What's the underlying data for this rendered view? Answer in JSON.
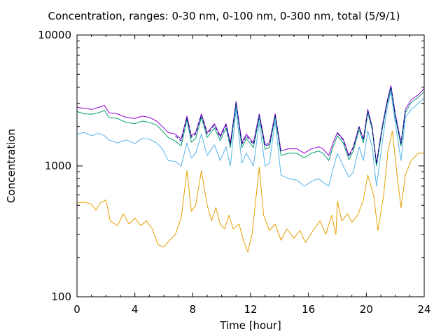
{
  "chart_data": {
    "type": "line",
    "title": "Concentration, ranges: 0-30 nm, 0-100 nm, 0-300 nm, total (5/9/1)",
    "xlabel": "Time [hour]",
    "ylabel": "Concentration",
    "xlim": [
      0,
      24
    ],
    "ylim": [
      100,
      10000
    ],
    "yscale": "log",
    "xticks": [
      0,
      4,
      8,
      12,
      16,
      20,
      24
    ],
    "yticks": [
      100,
      1000,
      10000
    ],
    "ytick_labels": [
      "100",
      "1000",
      "10000"
    ],
    "grid": false,
    "series": [
      {
        "color": "#9400d3",
        "dash": false,
        "points": [
          [
            0,
            2800
          ],
          [
            0.5,
            2750
          ],
          [
            1,
            2700
          ],
          [
            1.5,
            2800
          ],
          [
            1.9,
            2900
          ],
          [
            2.2,
            2550
          ],
          [
            2.8,
            2500
          ],
          [
            3.4,
            2350
          ],
          [
            4,
            2300
          ],
          [
            4.5,
            2400
          ],
          [
            5,
            2350
          ],
          [
            5.5,
            2200
          ],
          [
            5.9,
            2000
          ],
          [
            6.3,
            1800
          ],
          [
            6.8,
            1750
          ],
          [
            7.2,
            1600
          ],
          [
            7.6,
            2400
          ],
          [
            7.9,
            1700
          ],
          [
            8.2,
            1800
          ],
          [
            8.6,
            2500
          ],
          [
            9,
            1800
          ],
          [
            9.5,
            2100
          ],
          [
            9.9,
            1700
          ],
          [
            10.3,
            2100
          ],
          [
            10.6,
            1500
          ],
          [
            11,
            3100
          ],
          [
            11.4,
            1500
          ],
          [
            11.7,
            1750
          ],
          [
            12.2,
            1500
          ],
          [
            12.6,
            2500
          ],
          [
            13,
            1450
          ],
          [
            13.3,
            1500
          ],
          [
            13.7,
            2500
          ],
          [
            14.1,
            1300
          ],
          [
            14.6,
            1350
          ],
          [
            15.2,
            1350
          ],
          [
            15.7,
            1250
          ],
          [
            16.2,
            1350
          ],
          [
            16.7,
            1400
          ],
          [
            17,
            1350
          ],
          [
            17.4,
            1200
          ],
          [
            17.7,
            1500
          ],
          [
            18,
            1800
          ],
          [
            18.4,
            1600
          ],
          [
            18.8,
            1200
          ],
          [
            19.1,
            1400
          ],
          [
            19.5,
            2000
          ],
          [
            19.8,
            1600
          ],
          [
            20.1,
            2700
          ],
          [
            20.4,
            2000
          ],
          [
            20.7,
            1050
          ],
          [
            21.1,
            2000
          ],
          [
            21.4,
            3000
          ],
          [
            21.7,
            4100
          ],
          [
            22,
            2500
          ],
          [
            22.4,
            1500
          ],
          [
            22.7,
            2700
          ],
          [
            23.1,
            3200
          ],
          [
            23.6,
            3500
          ],
          [
            24,
            3900
          ]
        ]
      },
      {
        "color": "#009e73",
        "dash": false,
        "points": [
          [
            0,
            2600
          ],
          [
            0.5,
            2500
          ],
          [
            1,
            2480
          ],
          [
            1.5,
            2550
          ],
          [
            1.9,
            2650
          ],
          [
            2.2,
            2350
          ],
          [
            2.8,
            2300
          ],
          [
            3.4,
            2150
          ],
          [
            4,
            2100
          ],
          [
            4.5,
            2200
          ],
          [
            5,
            2150
          ],
          [
            5.5,
            2050
          ],
          [
            5.9,
            1850
          ],
          [
            6.3,
            1650
          ],
          [
            6.8,
            1550
          ],
          [
            7.2,
            1420
          ],
          [
            7.6,
            2250
          ],
          [
            7.9,
            1520
          ],
          [
            8.2,
            1620
          ],
          [
            8.6,
            2350
          ],
          [
            9,
            1650
          ],
          [
            9.5,
            1950
          ],
          [
            9.9,
            1560
          ],
          [
            10.3,
            1950
          ],
          [
            10.6,
            1380
          ],
          [
            11,
            2950
          ],
          [
            11.4,
            1380
          ],
          [
            11.7,
            1620
          ],
          [
            12.2,
            1380
          ],
          [
            12.6,
            2350
          ],
          [
            13,
            1340
          ],
          [
            13.3,
            1380
          ],
          [
            13.7,
            2400
          ],
          [
            14.1,
            1200
          ],
          [
            14.6,
            1250
          ],
          [
            15.2,
            1250
          ],
          [
            15.7,
            1150
          ],
          [
            16.2,
            1250
          ],
          [
            16.7,
            1300
          ],
          [
            17,
            1250
          ],
          [
            17.4,
            1100
          ],
          [
            17.7,
            1400
          ],
          [
            18,
            1700
          ],
          [
            18.4,
            1500
          ],
          [
            18.8,
            1120
          ],
          [
            19.1,
            1300
          ],
          [
            19.5,
            1900
          ],
          [
            19.8,
            1500
          ],
          [
            20.1,
            2550
          ],
          [
            20.4,
            1900
          ],
          [
            20.7,
            1000
          ],
          [
            21.1,
            1900
          ],
          [
            21.4,
            2850
          ],
          [
            21.7,
            3900
          ],
          [
            22,
            2350
          ],
          [
            22.4,
            1420
          ],
          [
            22.7,
            2550
          ],
          [
            23.1,
            3050
          ],
          [
            23.6,
            3350
          ],
          [
            24,
            3700
          ]
        ]
      },
      {
        "color": "#56b4e9",
        "dash": false,
        "points": [
          [
            0,
            1750
          ],
          [
            0.5,
            1800
          ],
          [
            1,
            1700
          ],
          [
            1.5,
            1780
          ],
          [
            1.9,
            1700
          ],
          [
            2.2,
            1580
          ],
          [
            2.8,
            1500
          ],
          [
            3.4,
            1580
          ],
          [
            4,
            1480
          ],
          [
            4.5,
            1620
          ],
          [
            5,
            1600
          ],
          [
            5.5,
            1500
          ],
          [
            5.9,
            1350
          ],
          [
            6.3,
            1100
          ],
          [
            6.8,
            1080
          ],
          [
            7.2,
            1000
          ],
          [
            7.6,
            1500
          ],
          [
            7.9,
            1150
          ],
          [
            8.2,
            1250
          ],
          [
            8.6,
            1750
          ],
          [
            9,
            1200
          ],
          [
            9.5,
            1450
          ],
          [
            9.9,
            1100
          ],
          [
            10.3,
            1400
          ],
          [
            10.6,
            1000
          ],
          [
            11,
            2700
          ],
          [
            11.4,
            1050
          ],
          [
            11.7,
            1250
          ],
          [
            12.2,
            1000
          ],
          [
            12.6,
            2150
          ],
          [
            13,
            1000
          ],
          [
            13.3,
            1050
          ],
          [
            13.7,
            2200
          ],
          [
            14.1,
            850
          ],
          [
            14.6,
            800
          ],
          [
            15.2,
            780
          ],
          [
            15.7,
            700
          ],
          [
            16.2,
            760
          ],
          [
            16.7,
            800
          ],
          [
            17,
            750
          ],
          [
            17.4,
            700
          ],
          [
            17.7,
            950
          ],
          [
            18,
            1250
          ],
          [
            18.4,
            1000
          ],
          [
            18.8,
            820
          ],
          [
            19.1,
            900
          ],
          [
            19.5,
            1400
          ],
          [
            19.8,
            1100
          ],
          [
            20.1,
            1850
          ],
          [
            20.4,
            1400
          ],
          [
            20.7,
            700
          ],
          [
            21.1,
            1500
          ],
          [
            21.4,
            2600
          ],
          [
            21.7,
            3700
          ],
          [
            22,
            2100
          ],
          [
            22.4,
            1100
          ],
          [
            22.7,
            2350
          ],
          [
            23.1,
            2700
          ],
          [
            23.6,
            3000
          ],
          [
            24,
            3300
          ]
        ]
      },
      {
        "color": "#000080",
        "dash": true,
        "points": [
          [
            6.8,
            1700
          ],
          [
            7.2,
            1550
          ],
          [
            7.6,
            2350
          ],
          [
            7.9,
            1650
          ],
          [
            8.2,
            1750
          ],
          [
            8.6,
            2450
          ],
          [
            9,
            1750
          ],
          [
            9.5,
            2050
          ],
          [
            9.9,
            1650
          ],
          [
            10.3,
            2050
          ],
          [
            10.6,
            1460
          ],
          [
            11,
            3050
          ],
          [
            11.4,
            1460
          ],
          [
            11.7,
            1700
          ],
          [
            12.2,
            1460
          ],
          [
            12.6,
            2450
          ],
          [
            13,
            1420
          ],
          [
            13.3,
            1460
          ],
          [
            13.7,
            2450
          ],
          [
            14.1,
            1280
          ],
          [
            18,
            1780
          ],
          [
            18.4,
            1580
          ],
          [
            18.8,
            1180
          ],
          [
            19.1,
            1380
          ],
          [
            19.5,
            1980
          ],
          [
            19.8,
            1580
          ],
          [
            20.1,
            2650
          ],
          [
            20.4,
            1980
          ],
          [
            20.7,
            1030
          ],
          [
            21.1,
            1980
          ],
          [
            21.4,
            2950
          ],
          [
            21.7,
            4050
          ],
          [
            22,
            2450
          ],
          [
            22.4,
            1480
          ],
          [
            22.7,
            2650
          ]
        ]
      },
      {
        "color": "#e69f00",
        "dash": false,
        "points": [
          [
            0,
            520
          ],
          [
            0.5,
            530
          ],
          [
            1,
            510
          ],
          [
            1.3,
            460
          ],
          [
            1.6,
            520
          ],
          [
            2,
            550
          ],
          [
            2.3,
            380
          ],
          [
            2.8,
            350
          ],
          [
            3.2,
            430
          ],
          [
            3.6,
            360
          ],
          [
            4,
            400
          ],
          [
            4.4,
            350
          ],
          [
            4.8,
            380
          ],
          [
            5.2,
            330
          ],
          [
            5.6,
            250
          ],
          [
            6,
            240
          ],
          [
            6.4,
            270
          ],
          [
            6.8,
            300
          ],
          [
            7.2,
            400
          ],
          [
            7.6,
            920
          ],
          [
            7.9,
            450
          ],
          [
            8.2,
            500
          ],
          [
            8.6,
            920
          ],
          [
            9,
            500
          ],
          [
            9.3,
            380
          ],
          [
            9.6,
            480
          ],
          [
            9.9,
            360
          ],
          [
            10.2,
            330
          ],
          [
            10.5,
            420
          ],
          [
            10.8,
            330
          ],
          [
            11.2,
            360
          ],
          [
            11.5,
            270
          ],
          [
            11.8,
            220
          ],
          [
            12.1,
            300
          ],
          [
            12.6,
            980
          ],
          [
            12.9,
            420
          ],
          [
            13.3,
            320
          ],
          [
            13.7,
            360
          ],
          [
            14.1,
            270
          ],
          [
            14.5,
            330
          ],
          [
            15,
            280
          ],
          [
            15.4,
            320
          ],
          [
            15.8,
            260
          ],
          [
            16.3,
            320
          ],
          [
            16.8,
            380
          ],
          [
            17.2,
            300
          ],
          [
            17.6,
            420
          ],
          [
            17.9,
            300
          ],
          [
            18,
            540
          ],
          [
            18.3,
            380
          ],
          [
            18.7,
            430
          ],
          [
            19,
            370
          ],
          [
            19.4,
            420
          ],
          [
            19.8,
            550
          ],
          [
            20.1,
            850
          ],
          [
            20.5,
            600
          ],
          [
            20.8,
            320
          ],
          [
            21.2,
            600
          ],
          [
            21.5,
            1300
          ],
          [
            21.8,
            1850
          ],
          [
            22.1,
            900
          ],
          [
            22.4,
            480
          ],
          [
            22.7,
            850
          ],
          [
            23.1,
            1100
          ],
          [
            23.6,
            1250
          ],
          [
            24,
            1250
          ]
        ]
      }
    ]
  }
}
